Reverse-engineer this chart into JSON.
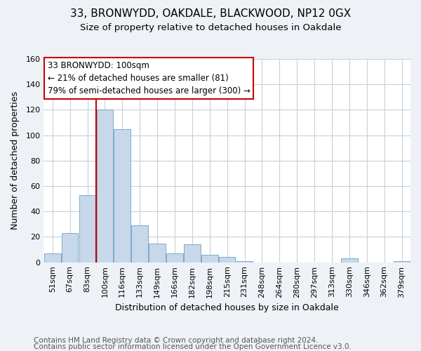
{
  "title": "33, BRONWYDD, OAKDALE, BLACKWOOD, NP12 0GX",
  "subtitle": "Size of property relative to detached houses in Oakdale",
  "xlabel": "Distribution of detached houses by size in Oakdale",
  "ylabel": "Number of detached properties",
  "bar_color": "#c8d8eb",
  "bar_edge_color": "#7aaac8",
  "vline_color": "#cc0000",
  "categories": [
    "51sqm",
    "67sqm",
    "83sqm",
    "100sqm",
    "116sqm",
    "133sqm",
    "149sqm",
    "166sqm",
    "182sqm",
    "198sqm",
    "215sqm",
    "231sqm",
    "248sqm",
    "264sqm",
    "280sqm",
    "297sqm",
    "313sqm",
    "330sqm",
    "346sqm",
    "362sqm",
    "379sqm"
  ],
  "values": [
    7,
    23,
    53,
    120,
    105,
    29,
    15,
    7,
    14,
    6,
    4,
    1,
    0,
    0,
    0,
    0,
    0,
    3,
    0,
    0,
    1
  ],
  "ylim": [
    0,
    160
  ],
  "yticks": [
    0,
    20,
    40,
    60,
    80,
    100,
    120,
    140,
    160
  ],
  "annotation_title": "33 BRONWYDD: 100sqm",
  "annotation_line1": "← 21% of detached houses are smaller (81)",
  "annotation_line2": "79% of semi-detached houses are larger (300) →",
  "annotation_box_color": "#ffffff",
  "annotation_box_edge_color": "#cc0000",
  "footer_line1": "Contains HM Land Registry data © Crown copyright and database right 2024.",
  "footer_line2": "Contains public sector information licensed under the Open Government Licence v3.0.",
  "background_color": "#eef2f7",
  "plot_background_color": "#ffffff",
  "grid_color": "#c8d0d8",
  "title_fontsize": 11,
  "subtitle_fontsize": 9.5,
  "xlabel_fontsize": 9,
  "ylabel_fontsize": 9,
  "tick_fontsize": 8,
  "footer_fontsize": 7.5,
  "vline_index": 3
}
